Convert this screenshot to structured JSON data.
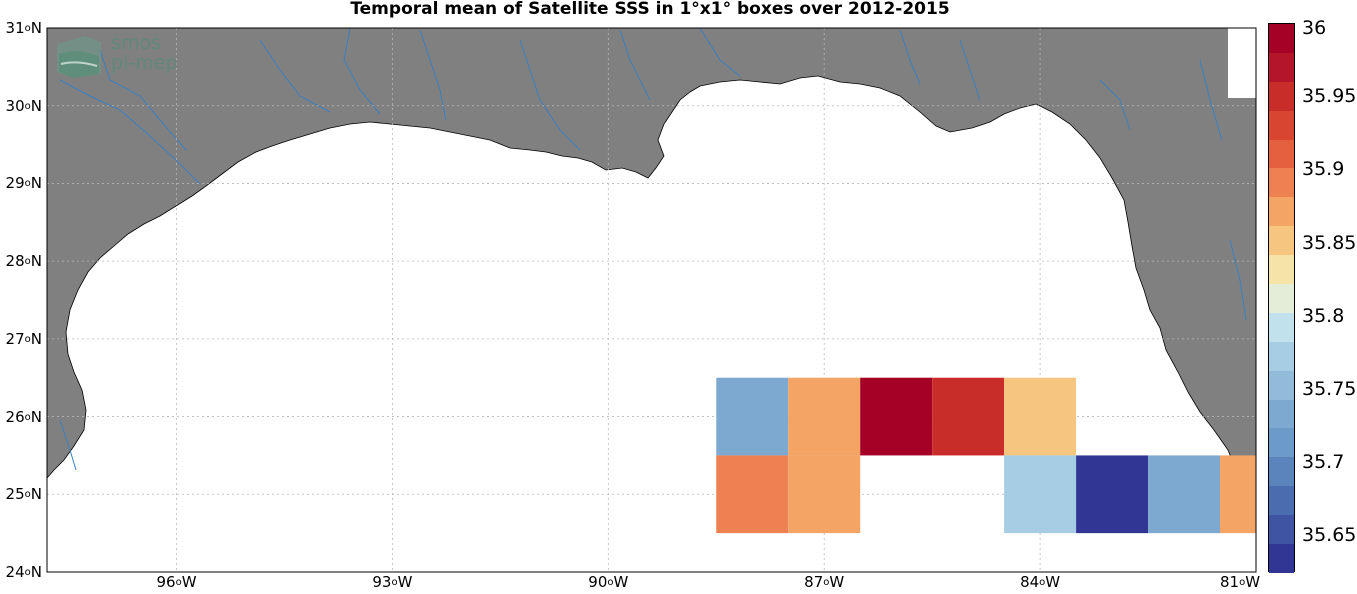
{
  "title": "Temporal mean of Satellite SSS in 1°x1° boxes over 2012-2015",
  "logo": {
    "line1": "smos",
    "line2": "pi-mep"
  },
  "map": {
    "lat_range": [
      24,
      31
    ],
    "lon_range": [
      -97.8,
      -81
    ],
    "latitude_ticks": [
      {
        "deg": "31",
        "hem": "N",
        "value": 31
      },
      {
        "deg": "30",
        "hem": "N",
        "value": 30
      },
      {
        "deg": "29",
        "hem": "N",
        "value": 29
      },
      {
        "deg": "28",
        "hem": "N",
        "value": 28
      },
      {
        "deg": "27",
        "hem": "N",
        "value": 27
      },
      {
        "deg": "26",
        "hem": "N",
        "value": 26
      },
      {
        "deg": "25",
        "hem": "N",
        "value": 25
      },
      {
        "deg": "24",
        "hem": "N",
        "value": 24
      }
    ],
    "longitude_ticks": [
      {
        "deg": "96",
        "hem": "W",
        "value": -96
      },
      {
        "deg": "93",
        "hem": "W",
        "value": -93
      },
      {
        "deg": "90",
        "hem": "W",
        "value": -90
      },
      {
        "deg": "87",
        "hem": "W",
        "value": -87
      },
      {
        "deg": "84",
        "hem": "W",
        "value": -84
      },
      {
        "deg": "81",
        "hem": "W",
        "value": -81
      }
    ],
    "grid": true,
    "land_color": "#808080",
    "river_color": "#3a7fc0"
  },
  "chart_data": {
    "type": "heatmap",
    "title": "Temporal mean of Satellite SSS in 1°x1° boxes over 2012-2015",
    "cell_size_deg": 1,
    "cells": [
      {
        "lon_min": -88.5,
        "lat_min": 25.5,
        "value": 35.74
      },
      {
        "lon_min": -87.5,
        "lat_min": 25.5,
        "value": 35.88
      },
      {
        "lon_min": -86.5,
        "lat_min": 25.5,
        "value": 36.0
      },
      {
        "lon_min": -85.5,
        "lat_min": 25.5,
        "value": 35.96
      },
      {
        "lon_min": -84.5,
        "lat_min": 25.5,
        "value": 35.86
      },
      {
        "lon_min": -88.5,
        "lat_min": 24.5,
        "value": 35.9
      },
      {
        "lon_min": -87.5,
        "lat_min": 24.5,
        "value": 35.88
      },
      {
        "lon_min": -84.5,
        "lat_min": 24.5,
        "value": 35.78
      },
      {
        "lon_min": -83.5,
        "lat_min": 24.5,
        "value": 35.63
      },
      {
        "lon_min": -82.5,
        "lat_min": 24.5,
        "value": 35.74
      },
      {
        "lon_min": -81.5,
        "lat_min": 24.5,
        "value": 35.88
      }
    ],
    "colorbar": {
      "min": 35.625,
      "max": 36.0,
      "ticks": [
        "36",
        "35.95",
        "35.9",
        "35.85",
        "35.8",
        "35.75",
        "35.7",
        "35.65"
      ],
      "tick_values": [
        36.0,
        35.95,
        35.9,
        35.85,
        35.8,
        35.75,
        35.7,
        35.65
      ],
      "colors": [
        "#313695",
        "#3f54a3",
        "#4a6db0",
        "#5b84bd",
        "#6c9ac9",
        "#7da9d1",
        "#91bbd9",
        "#a6cde3",
        "#c1e1ec",
        "#e3edd8",
        "#f5e4a8",
        "#f6c57f",
        "#f4a465",
        "#ee8152",
        "#e4603e",
        "#d84631",
        "#c92d29",
        "#b5152a",
        "#a50026"
      ]
    }
  }
}
